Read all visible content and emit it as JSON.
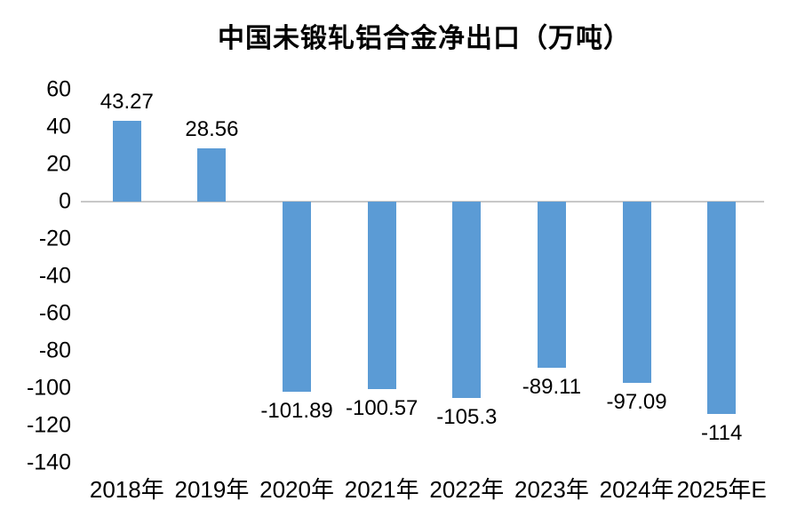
{
  "chart_data": {
    "type": "bar",
    "title": "中国未锻轧铝合金净出口（万吨）",
    "categories": [
      "2018年",
      "2019年",
      "2020年",
      "2021年",
      "2022年",
      "2023年",
      "2024年",
      "2025年E"
    ],
    "values": [
      43.27,
      28.56,
      -101.89,
      -100.57,
      -105.3,
      -89.11,
      -97.09,
      -114
    ],
    "data_labels": [
      "43.27",
      "28.56",
      "-101.89",
      "-100.57",
      "-105.3",
      "-89.11",
      "-97.09",
      "-114"
    ],
    "ylim": [
      -140,
      60
    ],
    "yticks": [
      60,
      40,
      20,
      0,
      -20,
      -40,
      -60,
      -80,
      -100,
      -120,
      -140
    ],
    "xlabel": "",
    "ylabel": "",
    "grid": false,
    "legend": false,
    "bar_color": "#5B9BD5",
    "axis_line_color": "#C8C8C8",
    "text_color": "#000000"
  }
}
